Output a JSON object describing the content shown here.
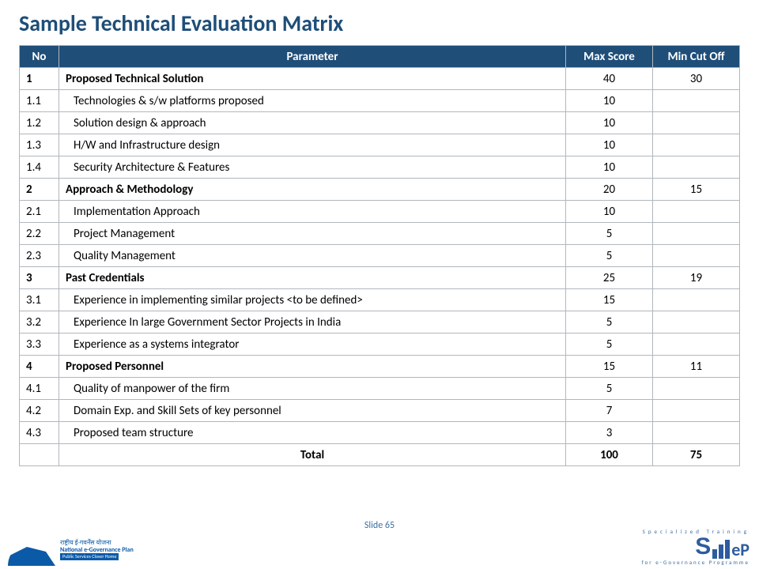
{
  "title": "Sample Technical Evaluation Matrix",
  "columns": {
    "no": "No",
    "param": "Parameter",
    "max": "Max Score",
    "cut": "Min Cut Off"
  },
  "rows": [
    {
      "no": "1",
      "param": "Proposed Technical Solution",
      "max": "40",
      "cut": "30",
      "type": "section"
    },
    {
      "no": "1.1",
      "param": "Technologies & s/w platforms proposed",
      "max": "10",
      "cut": "",
      "type": "sub"
    },
    {
      "no": "1.2",
      "param": "Solution design & approach",
      "max": "10",
      "cut": "",
      "type": "sub"
    },
    {
      "no": "1.3",
      "param": "H/W and Infrastructure design",
      "max": "10",
      "cut": "",
      "type": "sub"
    },
    {
      "no": "1.4",
      "param": "Security Architecture & Features",
      "max": "10",
      "cut": "",
      "type": "sub"
    },
    {
      "no": "2",
      "param": "Approach & Methodology",
      "max": "20",
      "cut": "15",
      "type": "section"
    },
    {
      "no": "2.1",
      "param": "Implementation Approach",
      "max": "10",
      "cut": "",
      "type": "sub"
    },
    {
      "no": "2.2",
      "param": "Project Management",
      "max": "5",
      "cut": "",
      "type": "sub"
    },
    {
      "no": "2.3",
      "param": "Quality Management",
      "max": "5",
      "cut": "",
      "type": "sub"
    },
    {
      "no": "3",
      "param": "Past Credentials",
      "max": "25",
      "cut": "19",
      "type": "section"
    },
    {
      "no": "3.1",
      "param": "Experience in implementing similar projects <to be defined>",
      "max": "15",
      "cut": "",
      "type": "sub"
    },
    {
      "no": "3.2",
      "param": "Experience In large Government Sector Projects in India",
      "max": "5",
      "cut": "",
      "type": "sub"
    },
    {
      "no": "3.3",
      "param": "Experience as a systems integrator",
      "max": "5",
      "cut": "",
      "type": "sub"
    },
    {
      "no": "4",
      "param": "Proposed Personnel",
      "max": "15",
      "cut": "11",
      "type": "section"
    },
    {
      "no": "4.1",
      "param": "Quality of manpower of the firm",
      "max": "5",
      "cut": "",
      "type": "sub"
    },
    {
      "no": "4.2",
      "param": "Domain Exp. and Skill Sets of key personnel",
      "max": "7",
      "cut": "",
      "type": "sub"
    },
    {
      "no": "4.3",
      "param": "Proposed team structure",
      "max": "3",
      "cut": "",
      "type": "sub"
    },
    {
      "no": "",
      "param": "Total",
      "max": "100",
      "cut": "75",
      "type": "total"
    }
  ],
  "footer": {
    "slide_label": "Slide 65",
    "left_logo": {
      "line1": "राष्ट्रीय ई-गवर्नेंस योजना",
      "line2": "National e-Governance Plan",
      "tagline": "Public Services Closer Home"
    },
    "right_logo": {
      "top": "Specialized Training",
      "bottom": "for e-Governance Programme"
    }
  },
  "style": {
    "header_bg": "#1f4e79",
    "header_fg": "#ffffff",
    "border_color": "#b0b7bd",
    "title_color": "#1e4e79",
    "font_family": "Calibri"
  }
}
